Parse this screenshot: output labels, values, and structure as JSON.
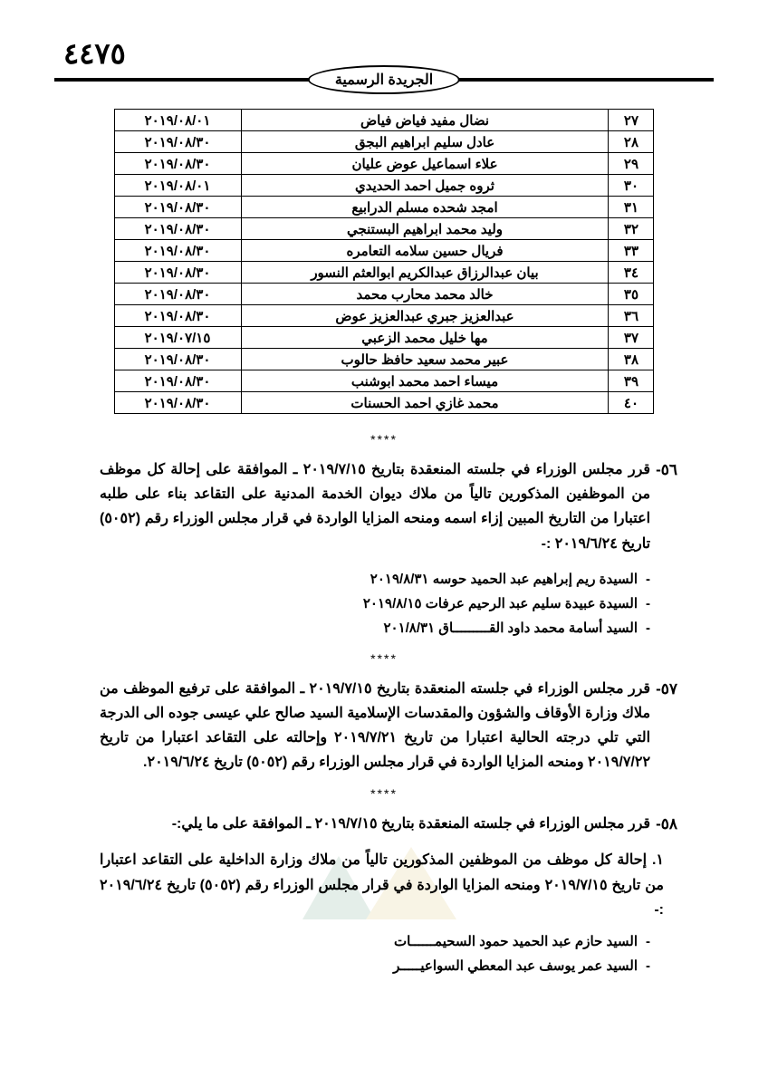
{
  "page_number": "٤٤٧٥",
  "publication_name": "الجريدة الرسمية",
  "separator": "****",
  "table": {
    "rows": [
      {
        "num": "٢٧",
        "name": "نضال مفيد فياض فياض",
        "date": "٢٠١٩/٠٨/٠١"
      },
      {
        "num": "٢٨",
        "name": "عادل سليم ابراهيم البجق",
        "date": "٢٠١٩/٠٨/٣٠"
      },
      {
        "num": "٢٩",
        "name": "علاء اسماعيل عوض عليان",
        "date": "٢٠١٩/٠٨/٣٠"
      },
      {
        "num": "٣٠",
        "name": "ثروه جميل احمد الحديدي",
        "date": "٢٠١٩/٠٨/٠١"
      },
      {
        "num": "٣١",
        "name": "امجد شحده مسلم الدرابيع",
        "date": "٢٠١٩/٠٨/٣٠"
      },
      {
        "num": "٣٢",
        "name": "وليد محمد ابراهيم البستنجي",
        "date": "٢٠١٩/٠٨/٣٠"
      },
      {
        "num": "٣٣",
        "name": "فريال حسين سلامه التعامره",
        "date": "٢٠١٩/٠٨/٣٠"
      },
      {
        "num": "٣٤",
        "name": "بيان عبدالرزاق عبدالكريم ابوالعثم النسور",
        "date": "٢٠١٩/٠٨/٣٠"
      },
      {
        "num": "٣٥",
        "name": "خالد محمد محارب محمد",
        "date": "٢٠١٩/٠٨/٣٠"
      },
      {
        "num": "٣٦",
        "name": "عبدالعزيز جبري عبدالعزيز عوض",
        "date": "٢٠١٩/٠٨/٣٠"
      },
      {
        "num": "٣٧",
        "name": "مها خليل محمد الزعبي",
        "date": "٢٠١٩/٠٧/١٥"
      },
      {
        "num": "٣٨",
        "name": "عبير محمد سعيد حافظ حالوب",
        "date": "٢٠١٩/٠٨/٣٠"
      },
      {
        "num": "٣٩",
        "name": "ميساء احمد محمد ابوشنب",
        "date": "٢٠١٩/٠٨/٣٠"
      },
      {
        "num": "٤٠",
        "name": "محمد غازي احمد الحسنات",
        "date": "٢٠١٩/٠٨/٣٠"
      }
    ]
  },
  "decree56": {
    "num": "٥٦-",
    "text": "قرر مجلس الوزراء في جلسته المنعقدة بتاريخ ٢٠١٩/٧/١٥ ـ الموافقة على إحالة كل موظف من الموظفين المذكورين تالياً من ملاك ديوان الخدمة المدنية على التقاعد بناء على طلبه اعتبارا من التاريخ المبين إزاء اسمه ومنحه المزايا الواردة في قرار مجلس الوزراء رقم (٥٠٥٢) تاريخ ٢٠١٩/٦/٢٤ :-",
    "names": [
      "السيدة ريم إبراهيم عبد الحميد حوسه  ٢٠١٩/٨/٣١",
      "السيدة عبيدة سليم عبد الرحيم عرفات ٢٠١٩/٨/١٥",
      "السيد أسامة محمد داود القـــــــــاق   ٢٠١/٨/٣١"
    ]
  },
  "decree57": {
    "num": "٥٧-",
    "text": "قرر مجلس الوزراء في جلسته المنعقدة بتاريخ ٢٠١٩/٧/١٥ ـ الموافقة على ترفيع الموظف من ملاك وزارة الأوقاف والشؤون والمقدسات الإسلامية السيد صالح علي عيسى جوده الى الدرجة التي تلي درجته الحالية اعتبارا من تاريخ ٢٠١٩/٧/٢١ وإحالته على التقاعد اعتبارا من تاريخ ٢٠١٩/٧/٢٢ ومنحه المزايا الواردة في قرار مجلس الوزراء رقم (٥٠٥٢) تاريخ ٢٠١٩/٦/٢٤."
  },
  "decree58": {
    "num": "٥٨-",
    "text": "قرر مجلس الوزراء في جلسته المنعقدة بتاريخ ٢٠١٩/٧/١٥ ـ الموافقة على ما يلي:-",
    "sub1": "١. إحالة كل موظف من الموظفين المذكورين تالياً من ملاك وزارة الداخلية على التقاعد اعتبارا من تاريخ ٢٠١٩/٧/١٥ ومنحه المزايا الواردة في قرار مجلس الوزراء رقم (٥٠٥٢) تاريخ ٢٠١٩/٦/٢٤ :-",
    "names": [
      "السيد حازم عبد الحميد حمود السحيمــــــات",
      "السيد عمر يوسف عبد المعطي السواعيـــــر"
    ]
  }
}
